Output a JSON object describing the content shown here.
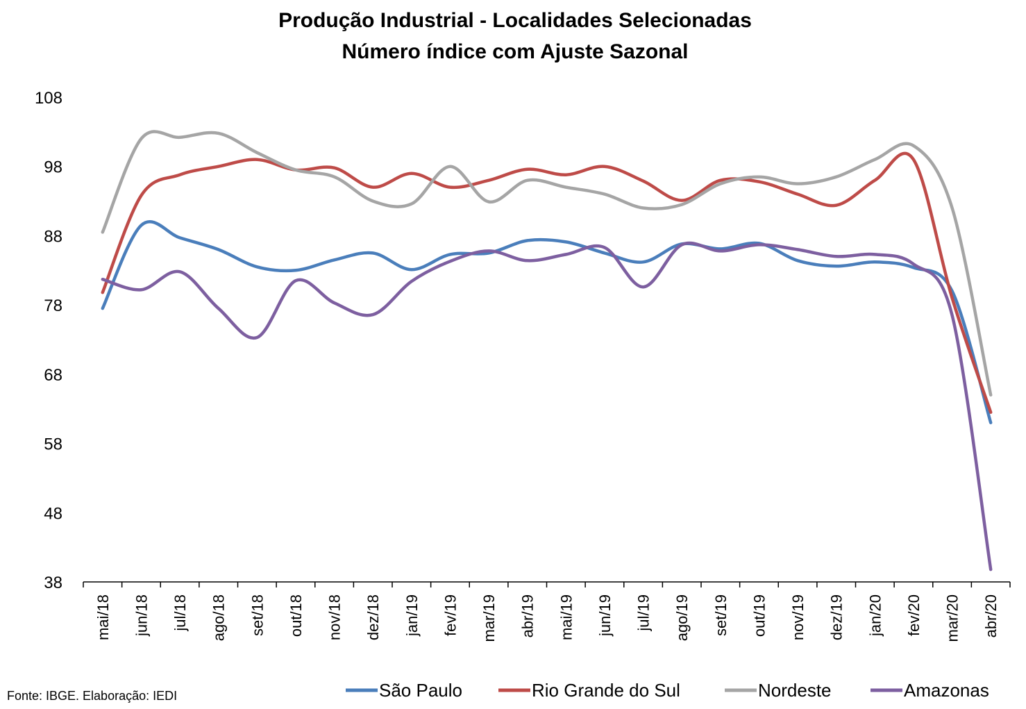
{
  "chart_data": {
    "type": "line",
    "title": "Produção Industrial - Localidades Selecionadas",
    "subtitle": "Número índice com Ajuste Sazonal",
    "xlabel": "",
    "ylabel": "",
    "ylim": [
      38,
      108
    ],
    "yticks": [
      "108",
      "98",
      "88",
      "78",
      "68",
      "58",
      "48",
      "38"
    ],
    "categories": [
      "mai/18",
      "jun/18",
      "jul/18",
      "ago/18",
      "set/18",
      "out/18",
      "nov/18",
      "dez/18",
      "jan/19",
      "fev/19",
      "mar/19",
      "abr/19",
      "mai/19",
      "jun/19",
      "jul/19",
      "ago/19",
      "set/19",
      "out/19",
      "nov/19",
      "dez/19",
      "jan/20",
      "fev/20",
      "mar/20",
      "abr/20"
    ],
    "grid": false,
    "legend_position": "bottom",
    "series": [
      {
        "name": "São Paulo",
        "color": "#4A7EBB",
        "values": [
          77.5,
          89.5,
          87.7,
          86.0,
          83.5,
          83.0,
          84.5,
          85.5,
          83.1,
          85.3,
          85.5,
          87.3,
          87.1,
          85.5,
          84.2,
          86.8,
          86.1,
          86.9,
          84.4,
          83.6,
          84.2,
          83.4,
          80.0,
          61.0
        ]
      },
      {
        "name": "Rio Grande do Sul",
        "color": "#BE4B48",
        "values": [
          79.8,
          93.8,
          96.8,
          98.0,
          99.0,
          97.5,
          97.8,
          95.0,
          97.0,
          95.0,
          96.0,
          97.6,
          96.8,
          98.0,
          95.9,
          93.1,
          96.0,
          95.8,
          94.0,
          92.4,
          96.0,
          99.0,
          79.0,
          62.5
        ]
      },
      {
        "name": "Nordeste",
        "color": "#A5A5A5",
        "values": [
          88.5,
          102.0,
          102.2,
          102.8,
          100.0,
          97.5,
          96.5,
          93.0,
          92.6,
          98.0,
          92.9,
          96.0,
          95.0,
          94.0,
          92.0,
          92.5,
          95.5,
          96.5,
          95.5,
          96.5,
          99.0,
          101.0,
          92.0,
          65.0
        ]
      },
      {
        "name": "Amazonas",
        "color": "#7D5FA0",
        "values": [
          81.7,
          80.2,
          82.8,
          77.5,
          73.3,
          81.5,
          78.3,
          76.6,
          81.4,
          84.3,
          85.8,
          84.4,
          85.3,
          86.3,
          80.6,
          86.7,
          85.8,
          86.7,
          86.0,
          85.0,
          85.3,
          83.9,
          76.5,
          39.8
        ]
      }
    ]
  },
  "source": "Fonte: IBGE. Elaboração: IEDI"
}
